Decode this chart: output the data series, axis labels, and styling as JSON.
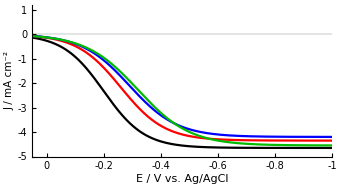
{
  "title": "",
  "xlabel": "E / V vs. Ag/AgCl",
  "ylabel": "J / mA cm⁻²",
  "xlim": [
    0.05,
    -1.0
  ],
  "ylim": [
    -5.0,
    1.2
  ],
  "yticks": [
    1,
    0,
    -1,
    -2,
    -3,
    -4,
    -5
  ],
  "xticks": [
    0.0,
    -0.2,
    -0.4,
    -0.6,
    -0.8,
    -1.0
  ],
  "curves": [
    {
      "color": "#000000",
      "half_wave": -0.2,
      "plateau": -4.65,
      "steepness": 14.0
    },
    {
      "color": "#ff0000",
      "half_wave": -0.26,
      "plateau": -4.35,
      "steepness": 13.0
    },
    {
      "color": "#0000ff",
      "half_wave": -0.29,
      "plateau": -4.2,
      "steepness": 12.0
    },
    {
      "color": "#00bb00",
      "half_wave": -0.32,
      "plateau": -4.55,
      "steepness": 11.0
    }
  ],
  "bg_color": "#ffffff",
  "linewidth": 1.6
}
